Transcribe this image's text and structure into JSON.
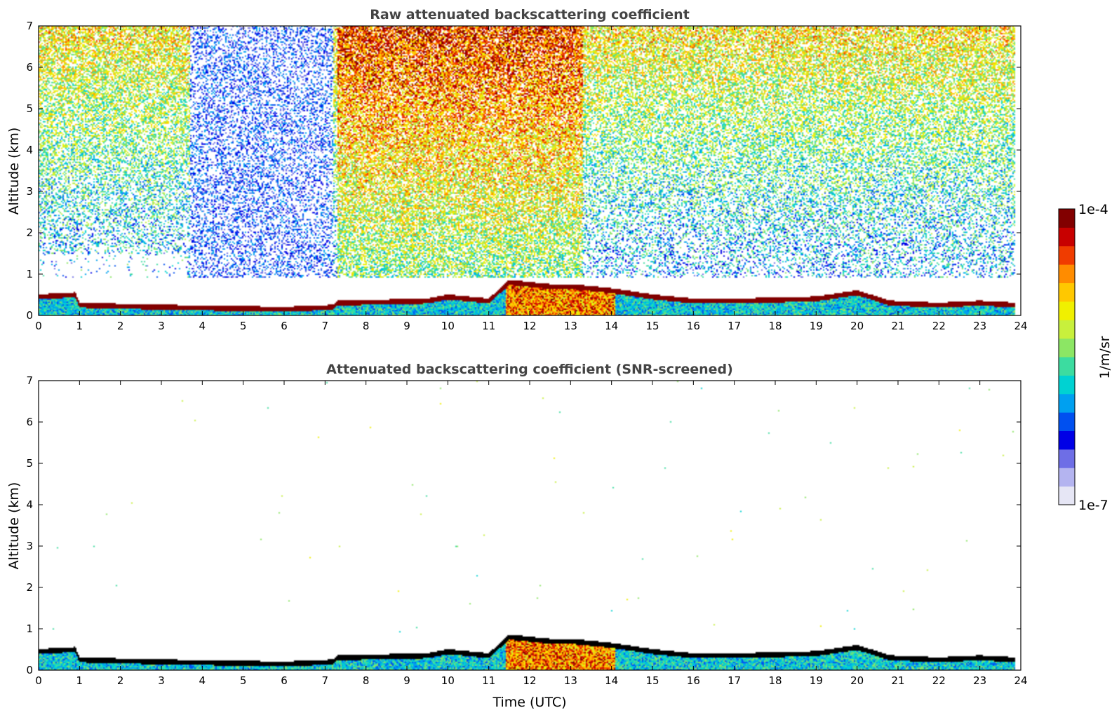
{
  "chart_data": [
    {
      "type": "heatmap",
      "title": "Raw attenuated backscattering coefficient",
      "xlabel": "",
      "ylabel": "Altitude (km)",
      "xlim": [
        0,
        24
      ],
      "ylim": [
        0,
        7
      ],
      "xticks": [
        "0",
        "1",
        "2",
        "3",
        "4",
        "5",
        "6",
        "7",
        "8",
        "9",
        "10",
        "11",
        "12",
        "13",
        "14",
        "15",
        "16",
        "17",
        "18",
        "19",
        "20",
        "21",
        "22",
        "23",
        "24"
      ],
      "yticks": [
        "0",
        "1",
        "2",
        "3",
        "4",
        "5",
        "6",
        "7"
      ],
      "boundary_layer_top_km": [
        [
          0,
          0.45
        ],
        [
          0.9,
          0.5
        ],
        [
          1.0,
          0.25
        ],
        [
          3.0,
          0.2
        ],
        [
          6.0,
          0.15
        ],
        [
          7.2,
          0.2
        ],
        [
          7.3,
          0.3
        ],
        [
          9.5,
          0.35
        ],
        [
          10.0,
          0.45
        ],
        [
          11.0,
          0.35
        ],
        [
          11.5,
          0.8
        ],
        [
          12.5,
          0.7
        ],
        [
          13.0,
          0.7
        ],
        [
          14.0,
          0.6
        ],
        [
          15.0,
          0.45
        ],
        [
          16.0,
          0.35
        ],
        [
          17.0,
          0.35
        ],
        [
          19.0,
          0.4
        ],
        [
          20.0,
          0.55
        ],
        [
          20.8,
          0.3
        ],
        [
          22.0,
          0.25
        ],
        [
          23.0,
          0.3
        ],
        [
          23.9,
          0.25
        ]
      ],
      "noise_profile": "signal above ~1 km is noise; strongest (red) aloft between 7.3 and 13 UTC, blue vertical streaks between 3.7 and 7.2 UTC"
    },
    {
      "type": "heatmap",
      "title": "Attenuated backscattering coefficient (SNR-screened)",
      "xlabel": "Time (UTC)",
      "ylabel": "Altitude (km)",
      "xlim": [
        0,
        24
      ],
      "ylim": [
        0,
        7
      ],
      "xticks": [
        "0",
        "1",
        "2",
        "3",
        "4",
        "5",
        "6",
        "7",
        "8",
        "9",
        "10",
        "11",
        "12",
        "13",
        "14",
        "15",
        "16",
        "17",
        "18",
        "19",
        "20",
        "21",
        "22",
        "23",
        "24"
      ],
      "yticks": [
        "0",
        "1",
        "2",
        "3",
        "4",
        "5",
        "6",
        "7"
      ],
      "boundary_layer_top_km": [
        [
          0,
          0.45
        ],
        [
          0.9,
          0.5
        ],
        [
          1.0,
          0.25
        ],
        [
          3.0,
          0.2
        ],
        [
          6.0,
          0.15
        ],
        [
          7.2,
          0.2
        ],
        [
          7.3,
          0.3
        ],
        [
          9.5,
          0.35
        ],
        [
          10.0,
          0.45
        ],
        [
          11.0,
          0.35
        ],
        [
          11.5,
          0.8
        ],
        [
          12.5,
          0.7
        ],
        [
          13.0,
          0.7
        ],
        [
          14.0,
          0.6
        ],
        [
          15.0,
          0.45
        ],
        [
          16.0,
          0.35
        ],
        [
          17.0,
          0.35
        ],
        [
          19.0,
          0.4
        ],
        [
          20.0,
          0.55
        ],
        [
          20.8,
          0.3
        ],
        [
          22.0,
          0.25
        ],
        [
          23.0,
          0.3
        ],
        [
          23.9,
          0.25
        ]
      ],
      "noise_profile": "noise removed; only boundary layer and a few isolated pixels remain"
    }
  ],
  "colorbar": {
    "label": "1/m/sr",
    "max_label": "1e-4",
    "min_label": "1e-7",
    "scale": "log",
    "colors": [
      "#e6e6f5",
      "#b4b4f0",
      "#6e6ee6",
      "#0000e6",
      "#0050f0",
      "#00a0f0",
      "#00d2d2",
      "#3cdca0",
      "#8ce664",
      "#c8f03c",
      "#f0f000",
      "#ffc800",
      "#ff8c00",
      "#f03c00",
      "#c80000",
      "#820000"
    ]
  }
}
